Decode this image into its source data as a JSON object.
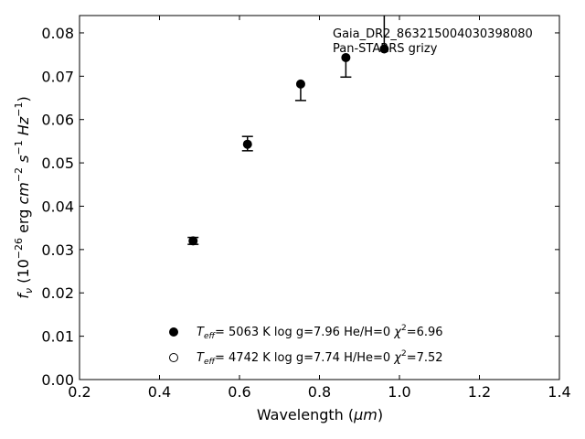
{
  "chart_data": {
    "type": "scatter",
    "xlabel_text": "Wavelength (",
    "xlabel_unit": "μm",
    "xlabel_close": ")",
    "ylabel_parts": {
      "symbol": "f",
      "symbol_sub": "ν",
      "open": " (10",
      "exp1": "−26",
      "unit1": " erg ",
      "cm": "cm",
      "exp2": "−2",
      "s": "s",
      "exp3": "−1",
      "hz": "Hz",
      "exp4": "−1",
      "close": ")"
    },
    "xlim": [
      0.2,
      1.4
    ],
    "ylim": [
      0.0,
      0.084
    ],
    "xticks": [
      "0.2",
      "0.4",
      "0.6",
      "0.8",
      "1.0",
      "1.2",
      "1.4"
    ],
    "yticks": [
      "0.00",
      "0.01",
      "0.02",
      "0.03",
      "0.04",
      "0.05",
      "0.06",
      "0.07",
      "0.08"
    ],
    "annotations": [
      "Gaia_DR2_863215004030398080",
      "Pan-STARRS grizy"
    ],
    "points": [
      {
        "x": 0.484,
        "y": 0.032,
        "err_lo": 0.0008,
        "err_hi": 0.0008
      },
      {
        "x": 0.62,
        "y": 0.0543,
        "err_lo": 0.0015,
        "err_hi": 0.0018
      },
      {
        "x": 0.753,
        "y": 0.0682,
        "err_lo": 0.0038,
        "err_hi": 0.0
      },
      {
        "x": 0.866,
        "y": 0.0743,
        "err_lo": 0.0045,
        "err_hi": 0.0
      },
      {
        "x": 0.962,
        "y": 0.0763,
        "err_lo": 0.0,
        "err_hi": 0.0095
      }
    ],
    "legend": [
      {
        "marker": "filled",
        "teff_label": "T",
        "teff_sub": "eff",
        "teff_value": "=  5063 K  log g=7.96  He/H=0  ",
        "chi": "χ",
        "chi_exp": "2",
        "chi_value": "=6.96"
      },
      {
        "marker": "open",
        "teff_label": "T",
        "teff_sub": "eff",
        "teff_value": "=  4742 K  log g=7.74  H/He=0  ",
        "chi": "χ",
        "chi_exp": "2",
        "chi_value": "=7.52"
      }
    ],
    "legend_placement": "lower-center",
    "grid": false
  }
}
